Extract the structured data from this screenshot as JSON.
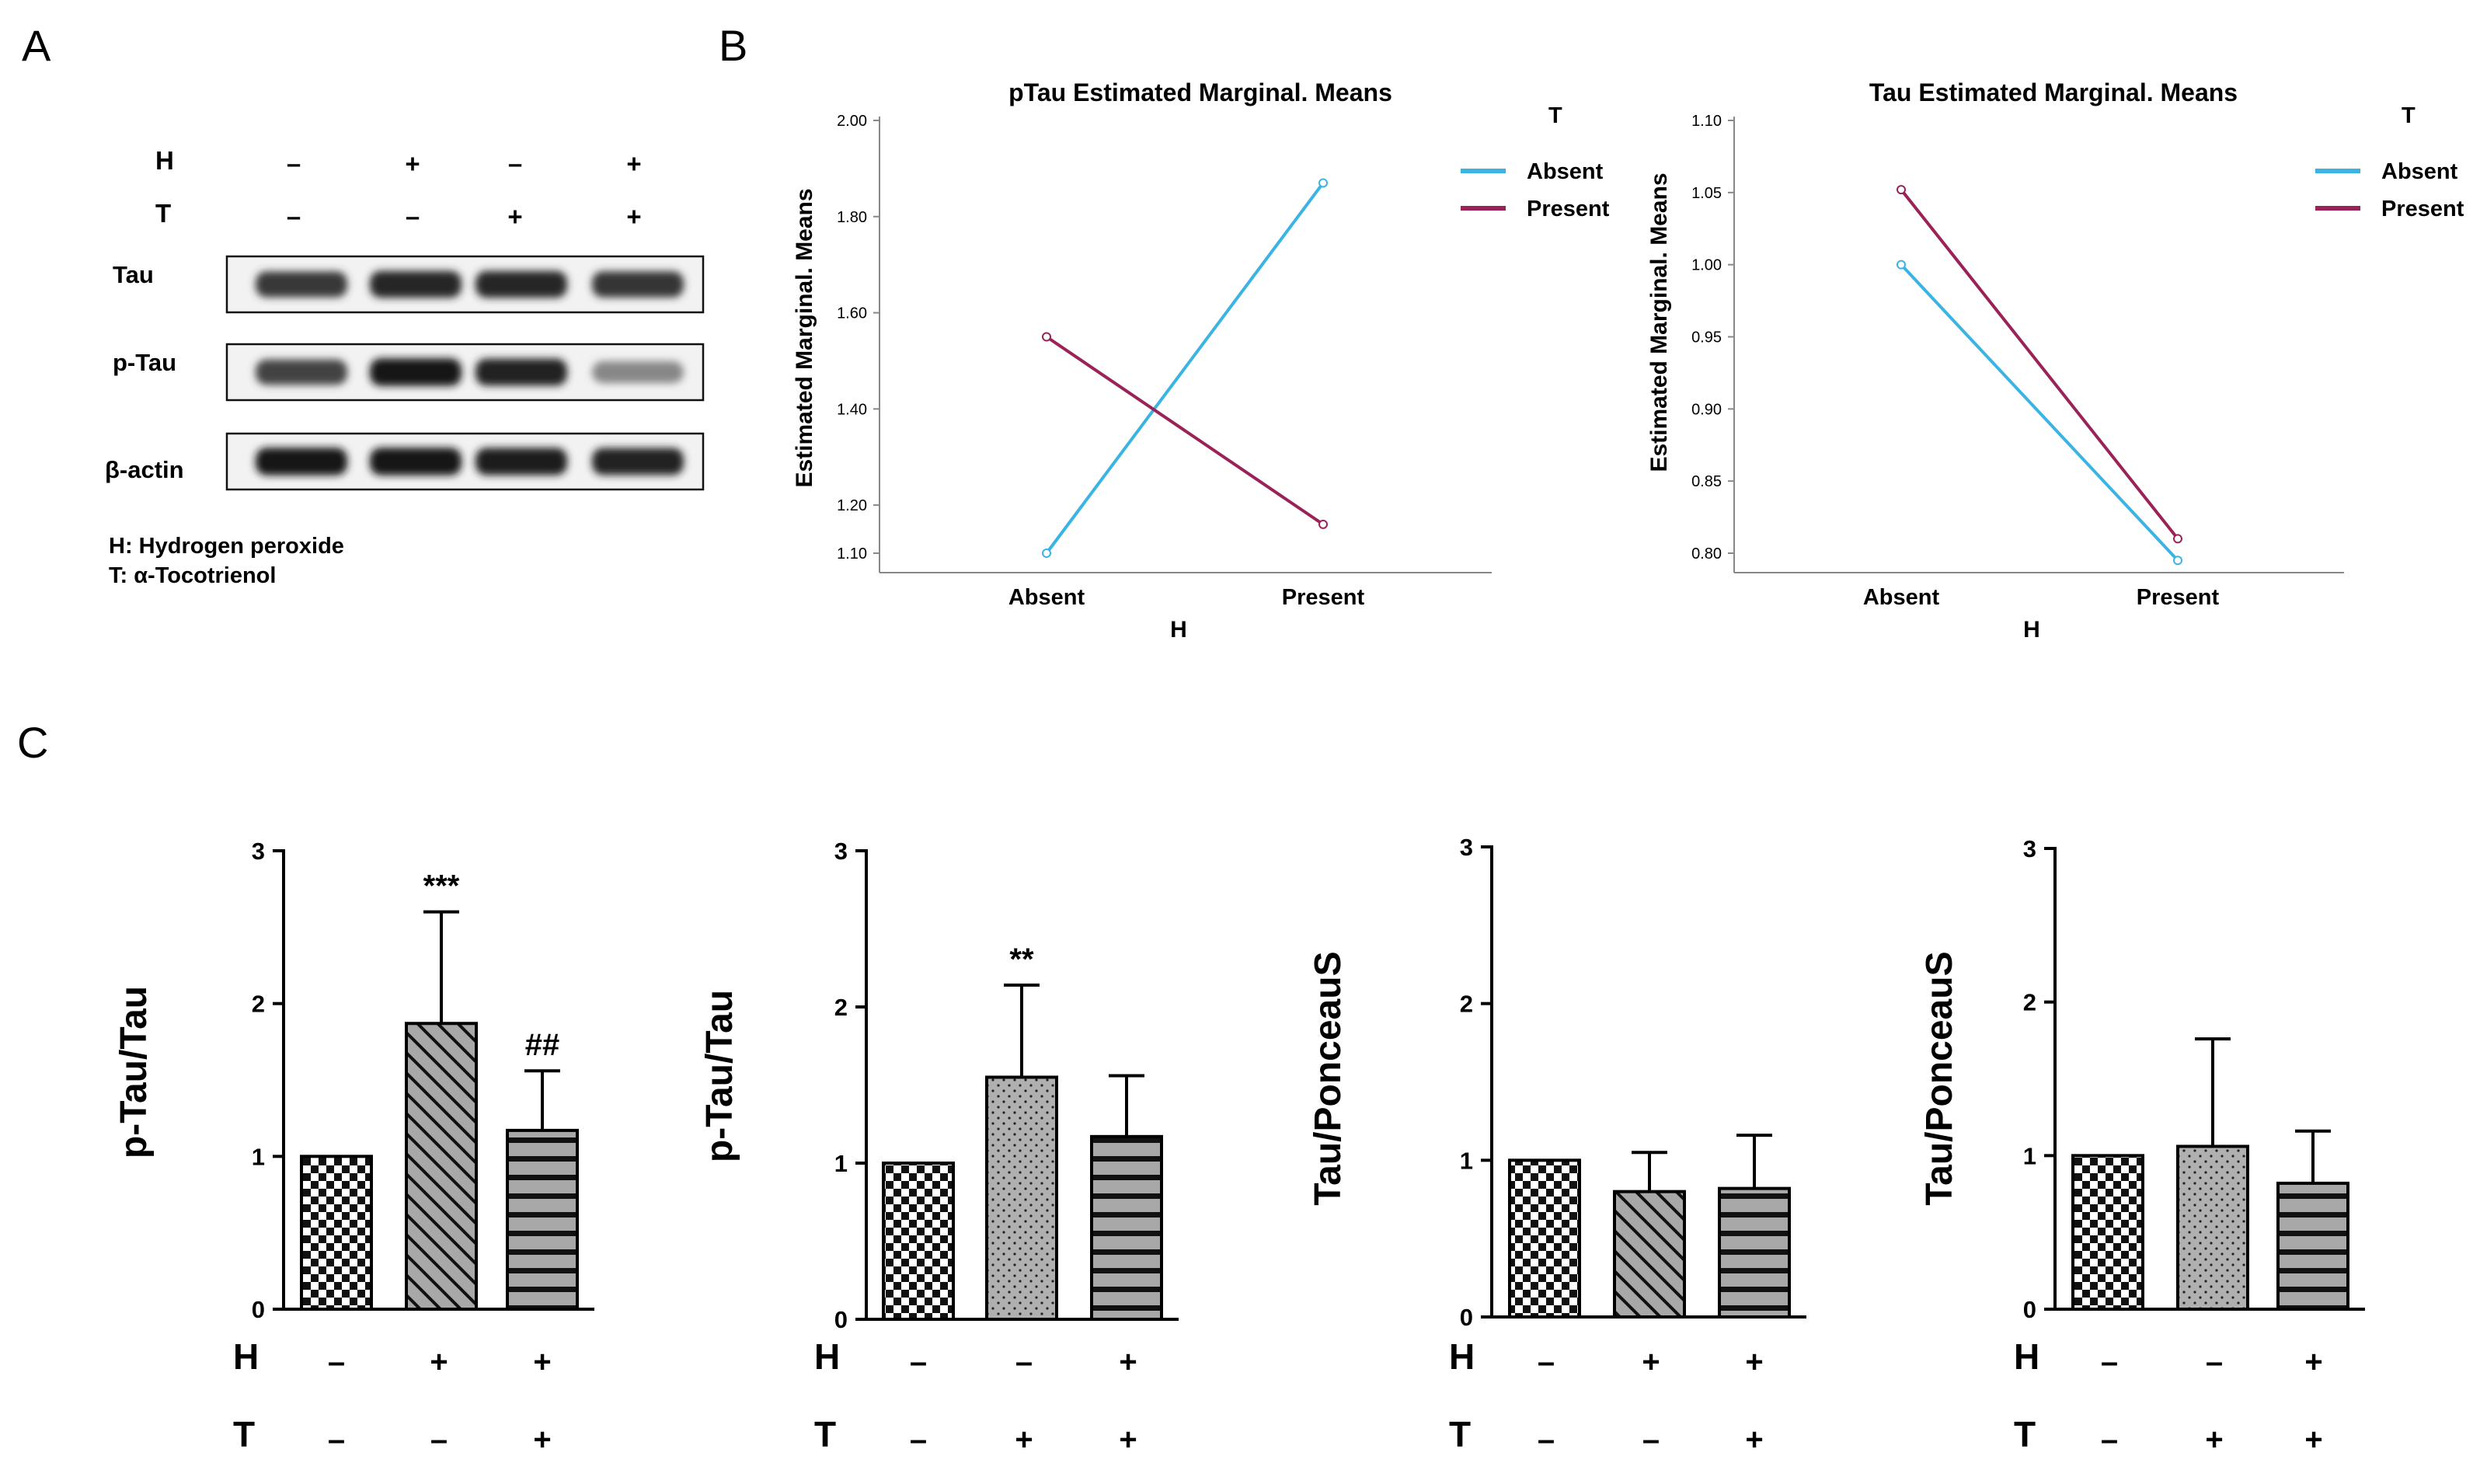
{
  "panel_labels": {
    "a": "A",
    "b": "B",
    "c": "C"
  },
  "colors": {
    "absent": "#3bb4e3",
    "present": "#9b2258",
    "bar_fill": "#a8a8a8",
    "ink": "#000000"
  },
  "blot": {
    "conditions": {
      "h_label": "H",
      "t_label": "T",
      "h": [
        "–",
        "+",
        "–",
        "+"
      ],
      "t": [
        "–",
        "–",
        "+",
        "+"
      ]
    },
    "bands": [
      {
        "label": "Tau",
        "intensity": [
          0.78,
          0.88,
          0.88,
          0.8
        ]
      },
      {
        "label": "p-Tau",
        "intensity": [
          0.72,
          0.95,
          0.9,
          0.35
        ]
      },
      {
        "label": "β-actin",
        "intensity": [
          0.95,
          0.95,
          0.92,
          0.9
        ]
      }
    ],
    "legend": [
      "H: Hydrogen peroxide",
      "T: α-Tocotrienol"
    ]
  },
  "chart_data": [
    {
      "type": "line",
      "title": "pTau Estimated Marginal. Means",
      "xlabel": "H",
      "ylabel": "Estimated Marginal. Means",
      "legend_title": "T",
      "legend_position": "top-right",
      "categories": [
        "Absent",
        "Present"
      ],
      "ylim": [
        1.1,
        2.0
      ],
      "yticks": [
        "1.10",
        "1.20",
        "1.40",
        "1.60",
        "1.80",
        "2.00"
      ],
      "series": [
        {
          "name": "Absent",
          "values": [
            1.1,
            1.87
          ]
        },
        {
          "name": "Present",
          "values": [
            1.55,
            1.16
          ]
        }
      ]
    },
    {
      "type": "line",
      "title": "Tau Estimated Marginal. Means",
      "xlabel": "H",
      "ylabel": "Estimated Marginal. Means",
      "legend_title": "T",
      "legend_position": "top-right",
      "categories": [
        "Absent",
        "Present"
      ],
      "ylim": [
        0.8,
        1.1
      ],
      "yticks": [
        "0.80",
        "0.85",
        "0.90",
        "0.95",
        "1.00",
        "1.05",
        "1.10"
      ],
      "series": [
        {
          "name": "Absent",
          "values": [
            1.0,
            0.795
          ]
        },
        {
          "name": "Present",
          "values": [
            1.052,
            0.81
          ]
        }
      ]
    },
    {
      "type": "bar",
      "ylabel": "p-Tau/Tau",
      "ylim": [
        0,
        3
      ],
      "yticks": [
        "0",
        "1",
        "2",
        "3"
      ],
      "row_labels": [
        "H",
        "T"
      ],
      "h": [
        "–",
        "+",
        "+"
      ],
      "t": [
        "–",
        "–",
        "+"
      ],
      "values": [
        1.0,
        1.87,
        1.17
      ],
      "errors": [
        0,
        0.73,
        0.39
      ],
      "patterns": [
        "checker",
        "diagonal",
        "horizontal"
      ],
      "annotations": [
        "",
        "***",
        "##"
      ]
    },
    {
      "type": "bar",
      "ylabel": "p-Tau/Tau",
      "ylim": [
        0,
        3
      ],
      "yticks": [
        "0",
        "1",
        "2",
        "3"
      ],
      "row_labels": [
        "H",
        "T"
      ],
      "h": [
        "–",
        "–",
        "+"
      ],
      "t": [
        "–",
        "+",
        "+"
      ],
      "values": [
        1.0,
        1.55,
        1.17
      ],
      "errors": [
        0,
        0.59,
        0.39
      ],
      "patterns": [
        "checker",
        "dots",
        "horizontal"
      ],
      "annotations": [
        "",
        "**",
        ""
      ]
    },
    {
      "type": "bar",
      "ylabel": "Tau/PonceauS",
      "ylim": [
        0,
        3
      ],
      "yticks": [
        "0",
        "1",
        "2",
        "3"
      ],
      "row_labels": [
        "H",
        "T"
      ],
      "h": [
        "–",
        "+",
        "+"
      ],
      "t": [
        "–",
        "–",
        "+"
      ],
      "values": [
        1.0,
        0.8,
        0.82
      ],
      "errors": [
        0,
        0.25,
        0.34
      ],
      "patterns": [
        "checker",
        "diagonal",
        "horizontal"
      ],
      "annotations": [
        "",
        "",
        ""
      ]
    },
    {
      "type": "bar",
      "ylabel": "Tau/PonceauS",
      "ylim": [
        0,
        3
      ],
      "yticks": [
        "0",
        "1",
        "2",
        "3"
      ],
      "row_labels": [
        "H",
        "T"
      ],
      "h": [
        "–",
        "–",
        "+"
      ],
      "t": [
        "–",
        "+",
        "+"
      ],
      "values": [
        1.0,
        1.06,
        0.82
      ],
      "errors": [
        0,
        0.7,
        0.34
      ],
      "patterns": [
        "checker",
        "dots",
        "horizontal"
      ],
      "annotations": [
        "",
        "",
        ""
      ]
    }
  ]
}
